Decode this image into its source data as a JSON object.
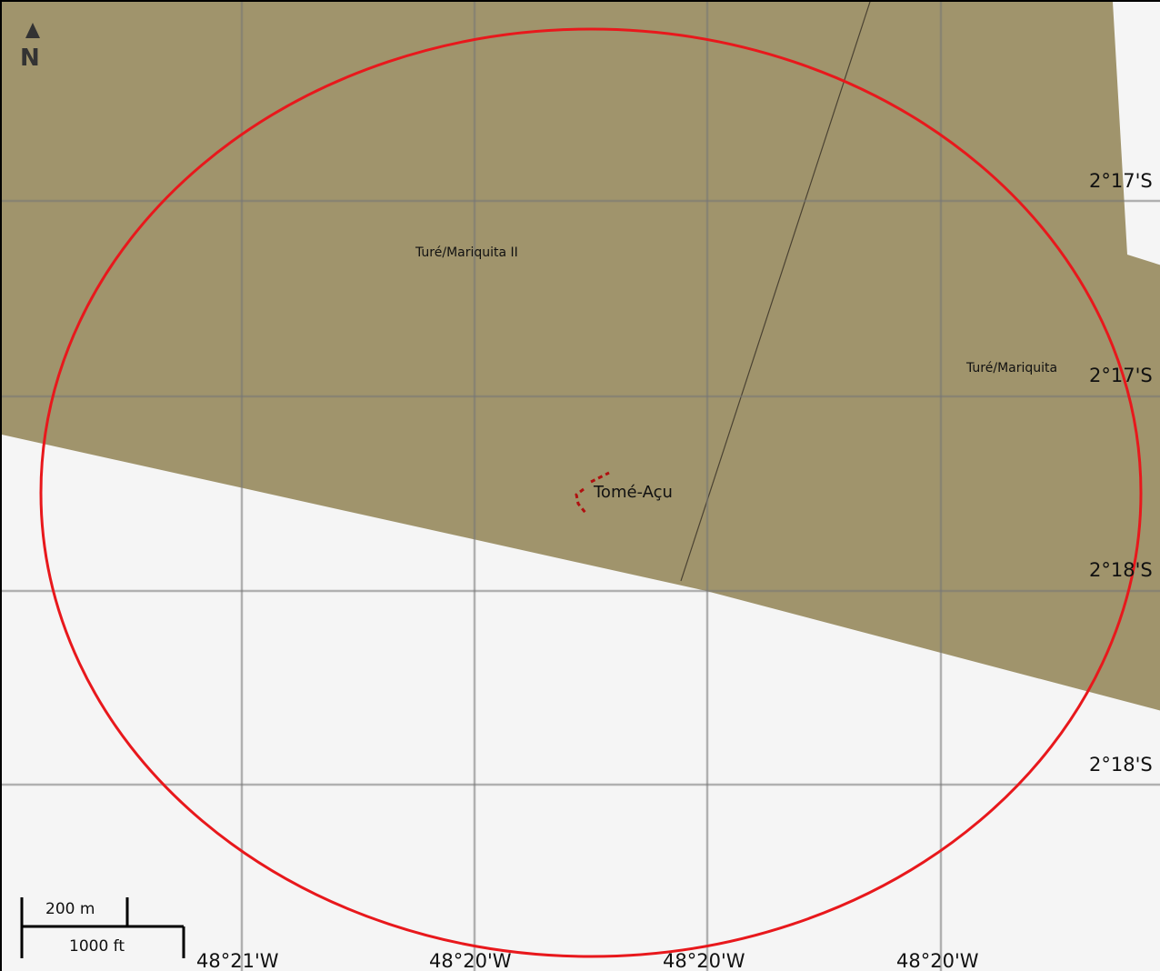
{
  "map": {
    "colors": {
      "background": "#f5f5f5",
      "territory_fill": "#a0946c",
      "boundary_circle": "#e8181c",
      "grid_line": "#888888",
      "city_marker": "#b01010"
    },
    "north_arrow": {
      "label": "N",
      "icon": "north-arrow-icon"
    },
    "territories": [
      {
        "name": "Turé/Mariquita II"
      },
      {
        "name": "Turé/Mariquita"
      }
    ],
    "city": {
      "name": "Tomé-Açu"
    },
    "latitude_labels": [
      "2°17'S",
      "2°17'S",
      "2°18'S",
      "2°18'S"
    ],
    "longitude_labels": [
      "48°21'W",
      "48°20'W",
      "48°20'W",
      "48°20'W"
    ],
    "scale_bar": {
      "metric": "200 m",
      "imperial": "1000 ft"
    }
  }
}
